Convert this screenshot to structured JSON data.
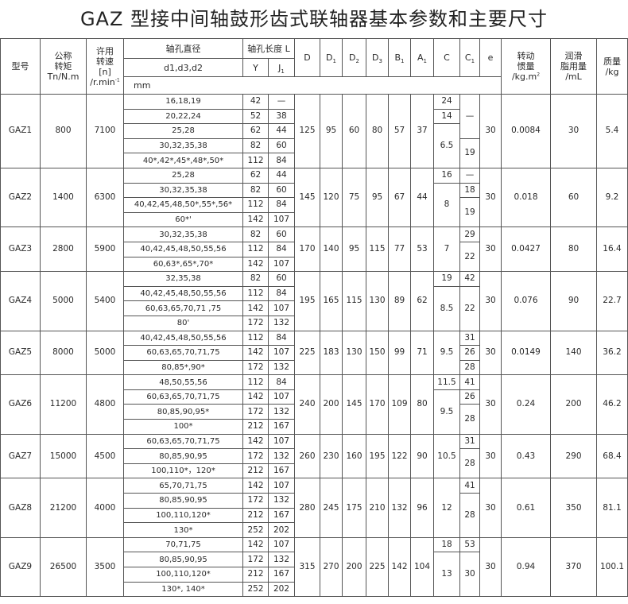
{
  "title": "GAZ 型接中间轴鼓形齿式联轴器基本参数和主要尺寸",
  "header": {
    "model": "型号",
    "torque": "公称\n转矩\nTn/N.m",
    "speed": "许用\n转速\n[n]\n/r.min",
    "speed_sup": "-1",
    "bore_diameter": "轴孔直径",
    "bore_length": "轴孔长度 L",
    "d_label": "d1,d3,d2",
    "y": "Y",
    "j1": "J1",
    "dims": [
      "D",
      "D1",
      "D2",
      "D3",
      "B1",
      "A1",
      "C",
      "C1",
      "e"
    ],
    "inertia": "转动\n惯量\n/kg.m",
    "inertia_sup": "2",
    "grease": "润滑\n脂用量\n/mL",
    "mass": "质量\n/kg",
    "unit": "mm"
  },
  "groups": [
    {
      "model": "GAZ1",
      "torque": "800",
      "speed": "7100",
      "D": "125",
      "D1": "95",
      "D2": "60",
      "D3": "80",
      "B1": "57",
      "A1": "37",
      "e": "30",
      "inertia": "0.0084",
      "grease": "30",
      "mass": "5.4",
      "rows": [
        [
          "16,18,19",
          "42",
          "—"
        ],
        [
          "20,22,24",
          "52",
          "38"
        ],
        [
          "25,28",
          "62",
          "44"
        ],
        [
          "30,32,35,38",
          "82",
          "60"
        ],
        [
          "40*,42*,45*,48*,50*",
          "112",
          "84"
        ]
      ],
      "C": [
        [
          "24",
          1
        ],
        [
          "14",
          1
        ],
        [
          "6.5",
          3
        ]
      ],
      "C1": [
        [
          "—",
          3
        ],
        [
          "19",
          2
        ]
      ]
    },
    {
      "model": "GAZ2",
      "torque": "1400",
      "speed": "6300",
      "D": "145",
      "D1": "120",
      "D2": "75",
      "D3": "95",
      "B1": "67",
      "A1": "44",
      "e": "30",
      "inertia": "0.018",
      "grease": "60",
      "mass": "9.2",
      "rows": [
        [
          "25,28",
          "62",
          "44"
        ],
        [
          "30,32,35,38",
          "82",
          "60"
        ],
        [
          "40,42,45,48,50*,55*,56*",
          "112",
          "84"
        ],
        [
          "60*'",
          "142",
          "107"
        ]
      ],
      "C": [
        [
          "16",
          1
        ],
        [
          "8",
          3
        ]
      ],
      "C1": [
        [
          "—",
          1
        ],
        [
          "18",
          1
        ],
        [
          "19",
          2
        ]
      ]
    },
    {
      "model": "GAZ3",
      "torque": "2800",
      "speed": "5900",
      "D": "170",
      "D1": "140",
      "D2": "95",
      "D3": "115",
      "B1": "77",
      "A1": "53",
      "e": "30",
      "inertia": "0.0427",
      "grease": "80",
      "mass": "16.4",
      "rows": [
        [
          "30,32,35,38",
          "82",
          "60"
        ],
        [
          "40,42,45,48,50,55,56",
          "112",
          "84"
        ],
        [
          "60,63*,65*,70*",
          "142",
          "107"
        ]
      ],
      "C": [
        [
          "7",
          3
        ]
      ],
      "C1": [
        [
          "29",
          1
        ],
        [
          "22",
          2
        ]
      ]
    },
    {
      "model": "GAZ4",
      "torque": "5000",
      "speed": "5400",
      "D": "195",
      "D1": "165",
      "D2": "115",
      "D3": "130",
      "B1": "89",
      "A1": "62",
      "e": "30",
      "inertia": "0.076",
      "grease": "90",
      "mass": "22.7",
      "rows": [
        [
          "32,35,38",
          "82",
          "60"
        ],
        [
          "40,42,45,48,50,55,56",
          "112",
          "84"
        ],
        [
          "60,63,65,70,71 ,75",
          "142",
          "107"
        ],
        [
          "80'",
          "172",
          "132"
        ]
      ],
      "C": [
        [
          "19",
          1
        ],
        [
          "8.5",
          3
        ]
      ],
      "C1": [
        [
          "42",
          1
        ],
        [
          "22",
          3
        ]
      ]
    },
    {
      "model": "GAZ5",
      "torque": "8000",
      "speed": "5000",
      "D": "225",
      "D1": "183",
      "D2": "130",
      "D3": "150",
      "B1": "99",
      "A1": "71",
      "e": "30",
      "inertia": "0.0149",
      "grease": "140",
      "mass": "36.2",
      "rows": [
        [
          "40,42,45,48,50,55,56",
          "112",
          "84"
        ],
        [
          "60,63,65,70,71,75",
          "142",
          "107"
        ],
        [
          "80,85*,90*",
          "172",
          "132"
        ]
      ],
      "C": [
        [
          "9.5",
          3
        ]
      ],
      "C1": [
        [
          "31",
          1
        ],
        [
          "26",
          1
        ],
        [
          "28",
          1
        ]
      ]
    },
    {
      "model": "GAZ6",
      "torque": "11200",
      "speed": "4800",
      "D": "240",
      "D1": "200",
      "D2": "145",
      "D3": "170",
      "B1": "109",
      "A1": "80",
      "e": "30",
      "inertia": "0.24",
      "grease": "200",
      "mass": "46.2",
      "rows": [
        [
          "48,50,55,56",
          "112",
          "84"
        ],
        [
          "60,63,65,70,71,75",
          "142",
          "107"
        ],
        [
          "80,85,90,95*",
          "172",
          "132"
        ],
        [
          "100*",
          "212",
          "167"
        ]
      ],
      "C": [
        [
          "11.5",
          1
        ],
        [
          "9.5",
          3
        ]
      ],
      "C1": [
        [
          "41",
          1
        ],
        [
          "26",
          1
        ],
        [
          "28",
          2
        ]
      ]
    },
    {
      "model": "GAZ7",
      "torque": "15000",
      "speed": "4500",
      "D": "260",
      "D1": "230",
      "D2": "160",
      "D3": "195",
      "B1": "122",
      "A1": "90",
      "e": "30",
      "inertia": "0.43",
      "grease": "290",
      "mass": "68.4",
      "rows": [
        [
          "60,63,65,70,71,75",
          "142",
          "107"
        ],
        [
          "80,85,90,95",
          "172",
          "132"
        ],
        [
          "100,110*，120*",
          "212",
          "167"
        ]
      ],
      "C": [
        [
          "10.5",
          3
        ]
      ],
      "C1": [
        [
          "31",
          1
        ],
        [
          "28",
          2
        ]
      ]
    },
    {
      "model": "GAZ8",
      "torque": "21200",
      "speed": "4000",
      "D": "280",
      "D1": "245",
      "D2": "175",
      "D3": "210",
      "B1": "132",
      "A1": "96",
      "e": "30",
      "inertia": "0.61",
      "grease": "350",
      "mass": "81.1",
      "rows": [
        [
          "65,70,71,75",
          "142",
          "107"
        ],
        [
          "80,85,90,95",
          "172",
          "132"
        ],
        [
          "100,110,120*",
          "212",
          "167"
        ],
        [
          "130*",
          "252",
          "202"
        ]
      ],
      "C": [
        [
          "12",
          4
        ]
      ],
      "C1": [
        [
          "41",
          1
        ],
        [
          "28",
          3
        ]
      ]
    },
    {
      "model": "GAZ9",
      "torque": "26500",
      "speed": "3500",
      "D": "315",
      "D1": "270",
      "D2": "200",
      "D3": "225",
      "B1": "142",
      "A1": "104",
      "e": "30",
      "inertia": "0.94",
      "grease": "370",
      "mass": "100.1",
      "rows": [
        [
          "70,71,75",
          "142",
          "107"
        ],
        [
          "80,85,90,95",
          "172",
          "132"
        ],
        [
          "100,110,120*",
          "212",
          "167"
        ],
        [
          "130*, 140*",
          "252",
          "202"
        ]
      ],
      "C": [
        [
          "18",
          1
        ],
        [
          "13",
          3
        ]
      ],
      "C1": [
        [
          "53",
          1
        ],
        [
          "30",
          3
        ]
      ]
    }
  ]
}
